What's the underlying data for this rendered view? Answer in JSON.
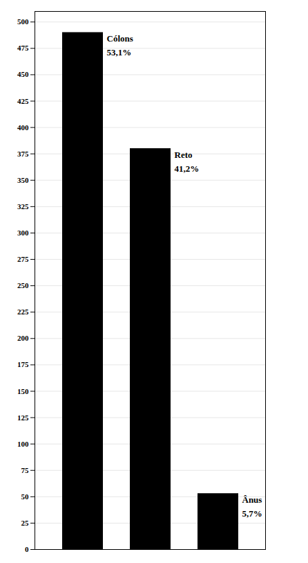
{
  "chart_data": {
    "type": "bar",
    "categories": [
      "Cólons",
      "Reto",
      "Ânus"
    ],
    "values": [
      490,
      380,
      53
    ],
    "color": "#000000",
    "annotations": [
      {
        "category": "Cólons",
        "text": "53,1%"
      },
      {
        "category": "Reto",
        "text": "41,2%"
      },
      {
        "category": "Ânus",
        "text": "5,7%"
      }
    ],
    "ylim": [
      0,
      510
    ],
    "yticks": [
      0,
      25,
      50,
      75,
      100,
      125,
      150,
      175,
      200,
      225,
      250,
      275,
      300,
      325,
      350,
      375,
      400,
      425,
      450,
      475,
      500
    ],
    "grid": true,
    "tick_labels": "y"
  }
}
